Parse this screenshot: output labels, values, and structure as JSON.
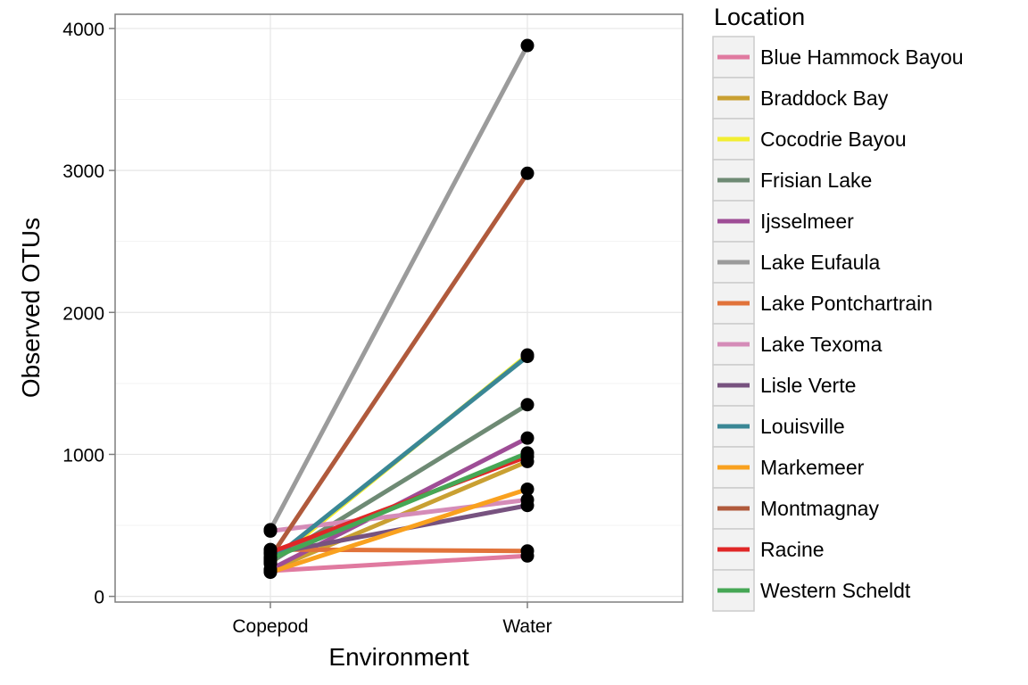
{
  "chart_data": {
    "type": "line",
    "title": "",
    "xlabel": "Environment",
    "ylabel": "Observed OTUs",
    "categories": [
      "Copepod",
      "Water"
    ],
    "ylim": [
      -40,
      4100
    ],
    "yticks": [
      0,
      1000,
      2000,
      3000,
      4000
    ],
    "grid": true,
    "legend": {
      "title": "Location",
      "placement": "right"
    },
    "series": [
      {
        "name": "Blue Hammock Bayou",
        "color": "#e07aa0",
        "values": [
          180,
          285
        ]
      },
      {
        "name": "Braddock Bay",
        "color": "#c9a032",
        "values": [
          185,
          950
        ]
      },
      {
        "name": "Cocodrie Bayou",
        "color": "#f2ee32",
        "values": [
          230,
          1700
        ]
      },
      {
        "name": "Frisian Lake",
        "color": "#6e8a74",
        "values": [
          240,
          1350
        ]
      },
      {
        "name": "Ijsselmeer",
        "color": "#9e4d96",
        "values": [
          190,
          1115
        ]
      },
      {
        "name": "Lake Eufaula",
        "color": "#9b9b9b",
        "values": [
          470,
          3880
        ]
      },
      {
        "name": "Lake Pontchartrain",
        "color": "#e1733a",
        "values": [
          330,
          320
        ]
      },
      {
        "name": "Lake Texoma",
        "color": "#d58cb8",
        "values": [
          460,
          680
        ]
      },
      {
        "name": "Lisle Verte",
        "color": "#77527f",
        "values": [
          300,
          640
        ]
      },
      {
        "name": "Louisville",
        "color": "#3a8795",
        "values": [
          250,
          1690
        ]
      },
      {
        "name": "Markemeer",
        "color": "#f9a11f",
        "values": [
          170,
          755
        ]
      },
      {
        "name": "Montmagnay",
        "color": "#b05a3c",
        "values": [
          275,
          2980
        ]
      },
      {
        "name": "Racine",
        "color": "#e02727",
        "values": [
          310,
          985
        ]
      },
      {
        "name": "Western Scheldt",
        "color": "#46a755",
        "values": [
          265,
          1010
        ]
      }
    ]
  }
}
